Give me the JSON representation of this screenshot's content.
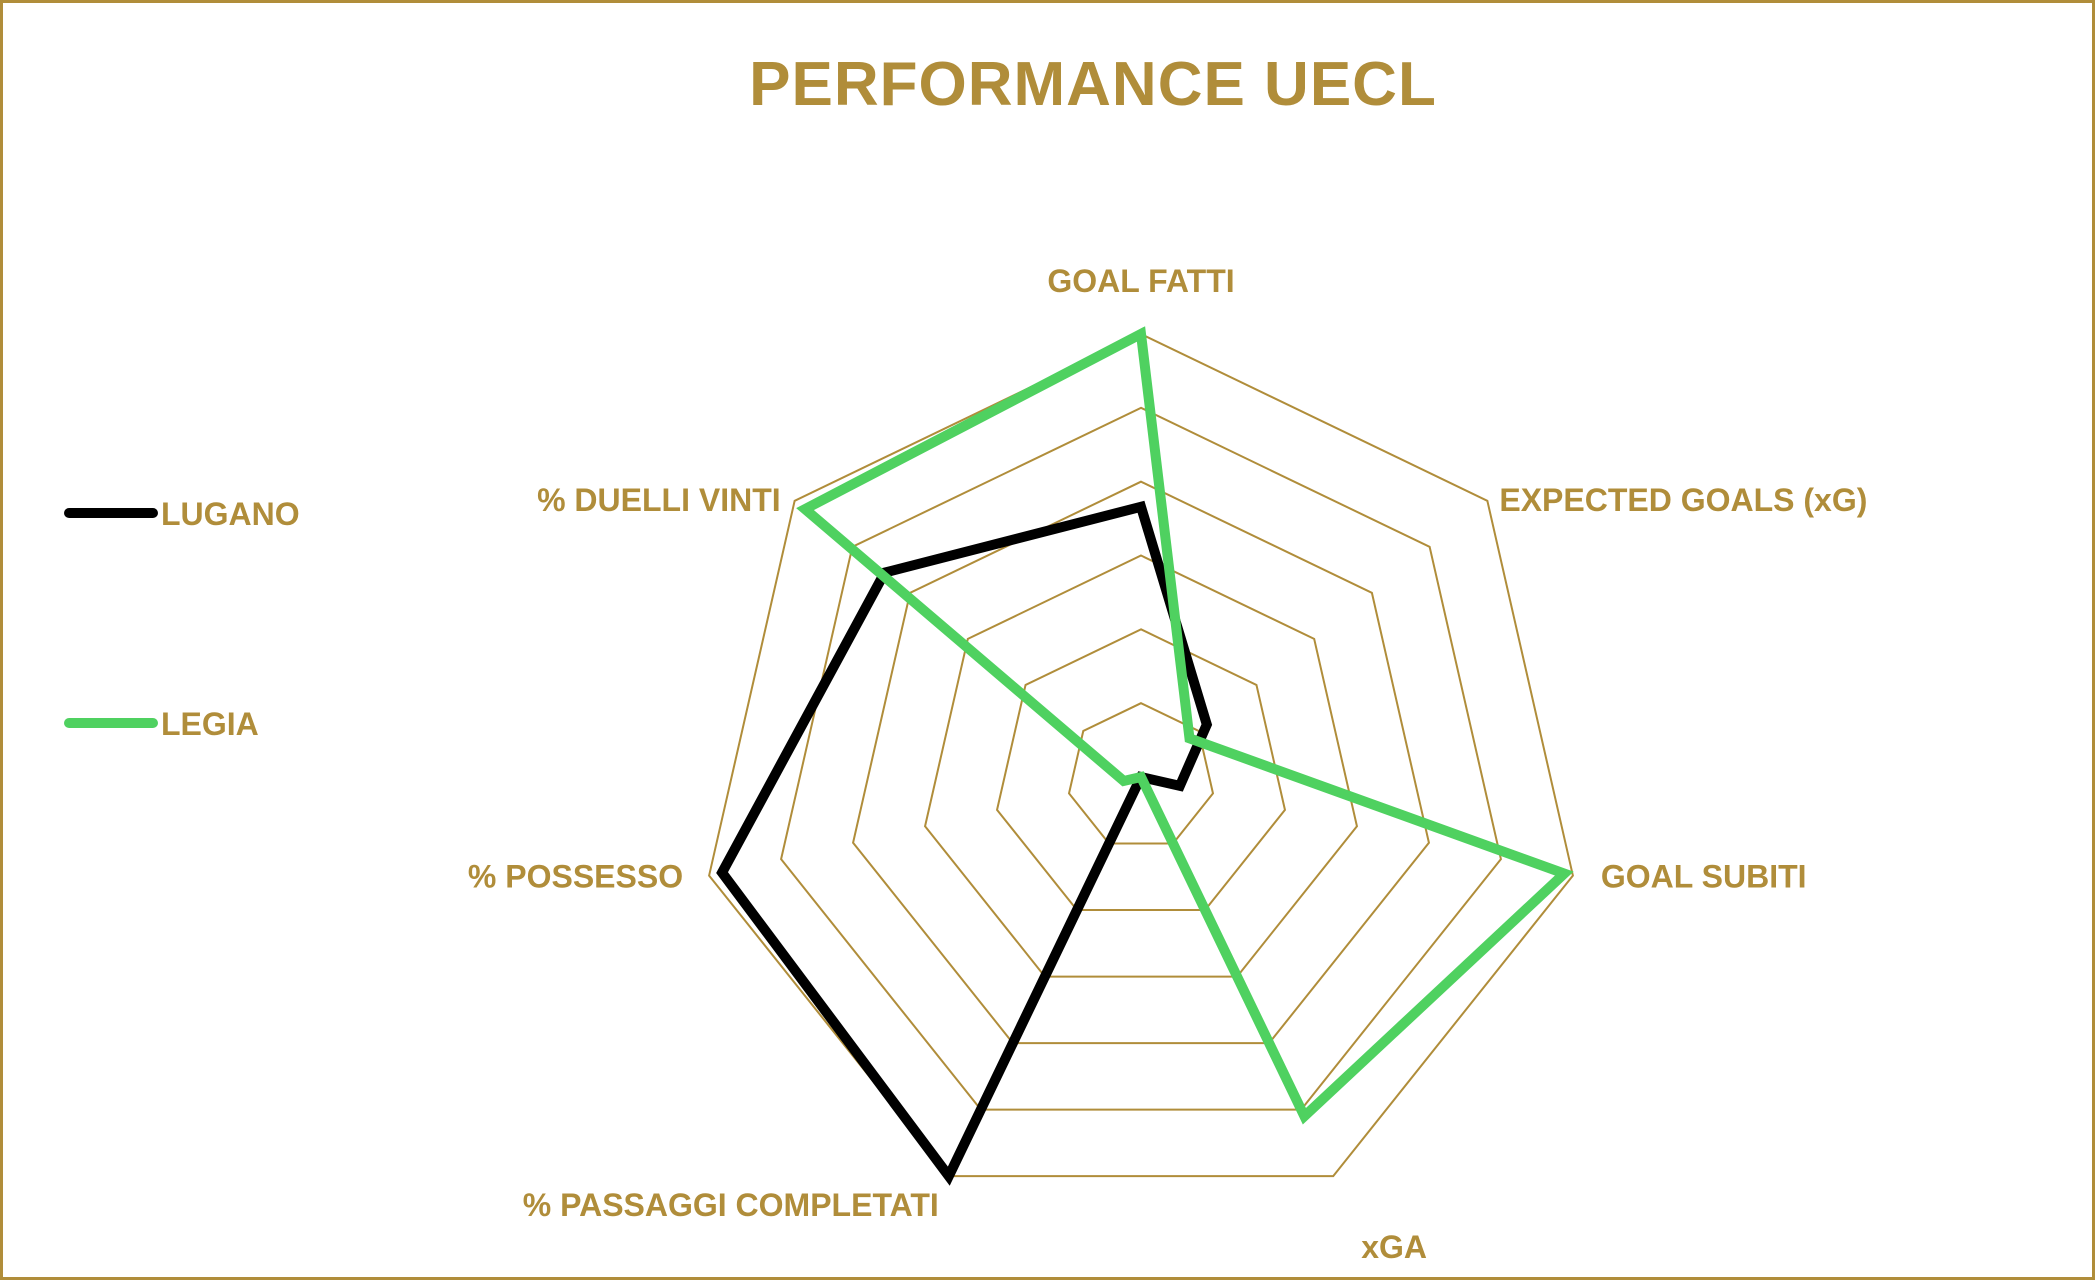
{
  "chart_data": {
    "type": "radar",
    "title": "PERFORMANCE UECL",
    "axes": [
      "GOAL FATTI",
      "EXPECTED GOALS (xG)",
      "GOAL SUBITI",
      "xGA",
      "% PASSAGGI COMPLETATI",
      "% POSSESSO",
      "% DUELLI VINTI"
    ],
    "rings": 6,
    "range": [
      0,
      1
    ],
    "grid": true,
    "legend_position": "left",
    "series": [
      {
        "name": "LUGANO",
        "color": "#000000",
        "values": [
          0.61,
          0.19,
          0.09,
          0.0,
          1.0,
          0.97,
          0.74
        ]
      },
      {
        "name": "LEGIA",
        "color": "#4fd160",
        "values": [
          1.0,
          0.14,
          0.98,
          0.85,
          0.0,
          0.04,
          0.97
        ]
      }
    ]
  },
  "colors": {
    "gold": "#b08d3a",
    "grid": "#b08d3a"
  }
}
